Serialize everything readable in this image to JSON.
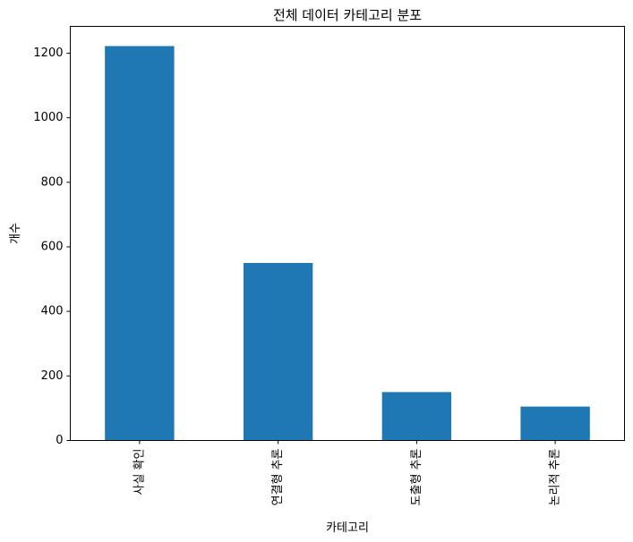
{
  "chart_data": {
    "type": "bar",
    "title": "전체 데이터 카테고리 분포",
    "xlabel": "카테고리",
    "ylabel": "개수",
    "categories": [
      "사실 확인",
      "연결형 추론",
      "도출형 추론",
      "논리적 추론"
    ],
    "values": [
      1222,
      550,
      150,
      105
    ],
    "ylim": [
      0,
      1283
    ],
    "yticks": [
      0,
      200,
      400,
      600,
      800,
      1000,
      1200
    ],
    "grid": false,
    "legend": "none",
    "bar_color": "#1f77b4"
  }
}
